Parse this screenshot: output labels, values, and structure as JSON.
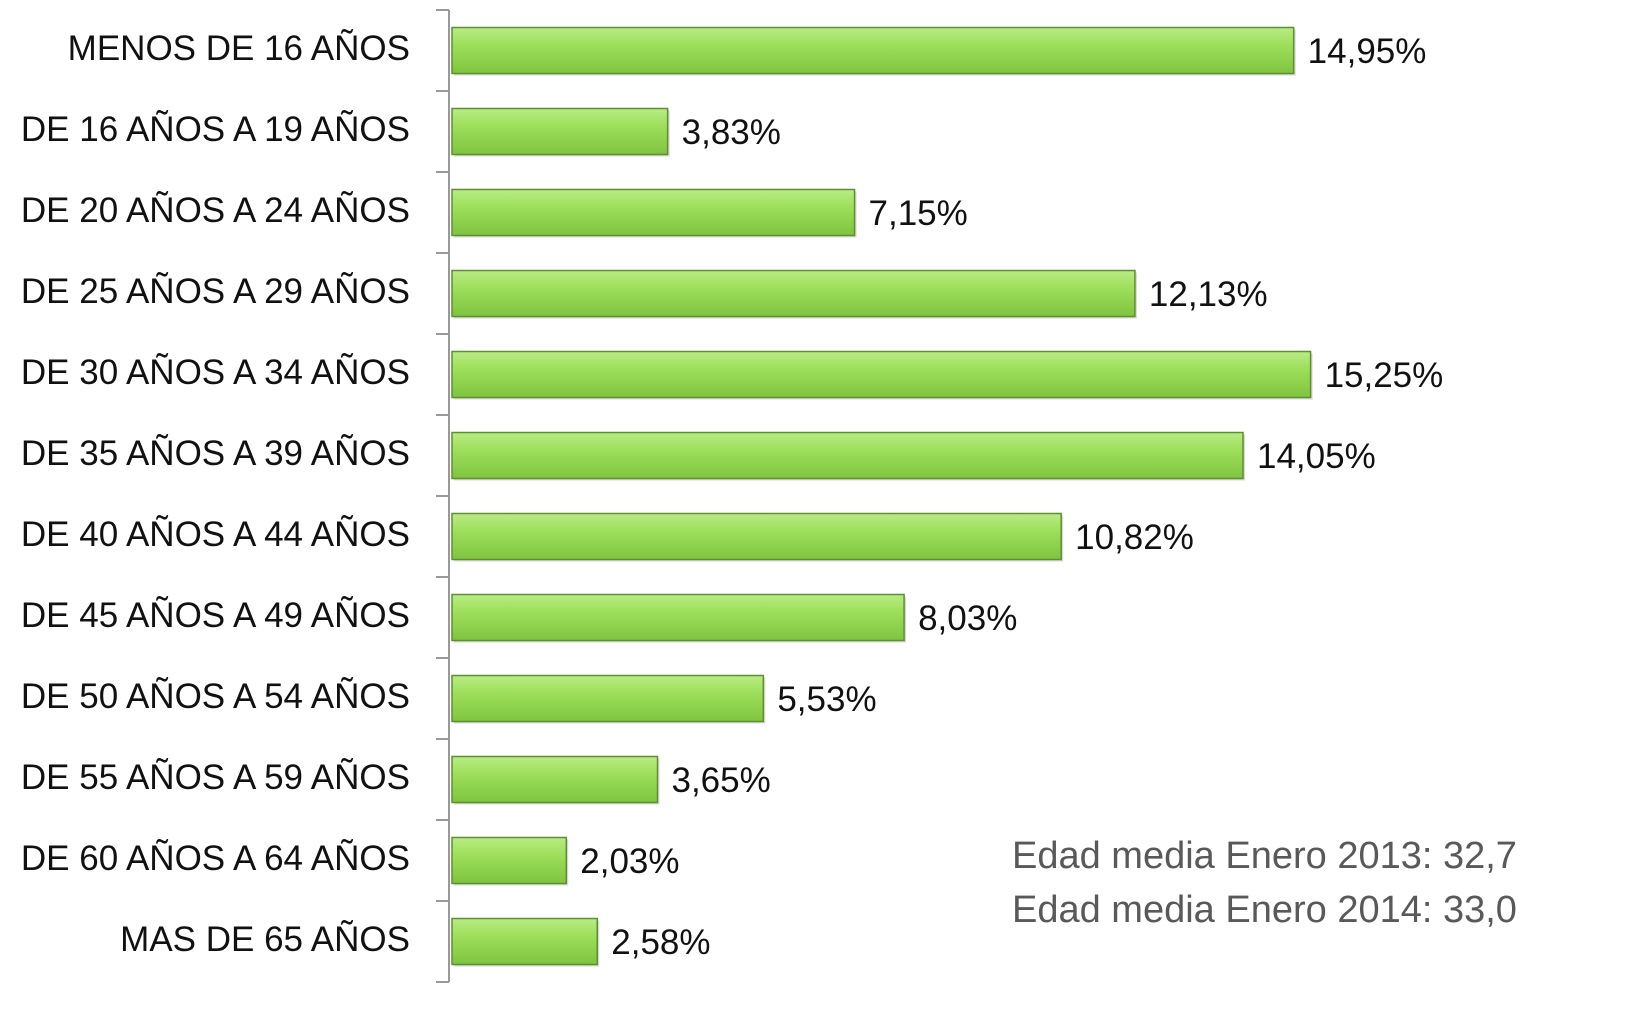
{
  "chart_data": {
    "type": "bar",
    "orientation": "horizontal",
    "categories": [
      "MENOS DE 16 AÑOS",
      "DE 16 AÑOS A 19 AÑOS",
      "DE 20 AÑOS A 24 AÑOS",
      "DE 25 AÑOS A 29 AÑOS",
      "DE 30 AÑOS A 34 AÑOS",
      "DE 35 AÑOS A 39 AÑOS",
      "DE 40 AÑOS A 44 AÑOS",
      "DE 45 AÑOS A 49 AÑOS",
      "DE 50 AÑOS A 54 AÑOS",
      "DE 55 AÑOS A 59 AÑOS",
      "DE 60 AÑOS A 64 AÑOS",
      "MAS DE 65 AÑOS"
    ],
    "values": [
      14.95,
      3.83,
      7.15,
      12.13,
      15.25,
      14.05,
      10.82,
      8.03,
      5.53,
      3.65,
      2.03,
      2.58
    ],
    "value_labels": [
      "14,95%",
      "3,83%",
      "7,15%",
      "12,13%",
      "15,25%",
      "14,05%",
      "10,82%",
      "8,03%",
      "5,53%",
      "3,65%",
      "2,03%",
      "2,58%"
    ],
    "color": "#92d050",
    "xlim": [
      0,
      20
    ],
    "annotations": [
      "Edad media Enero 2013: 32,7",
      "Edad media Enero 2014: 33,0"
    ]
  }
}
